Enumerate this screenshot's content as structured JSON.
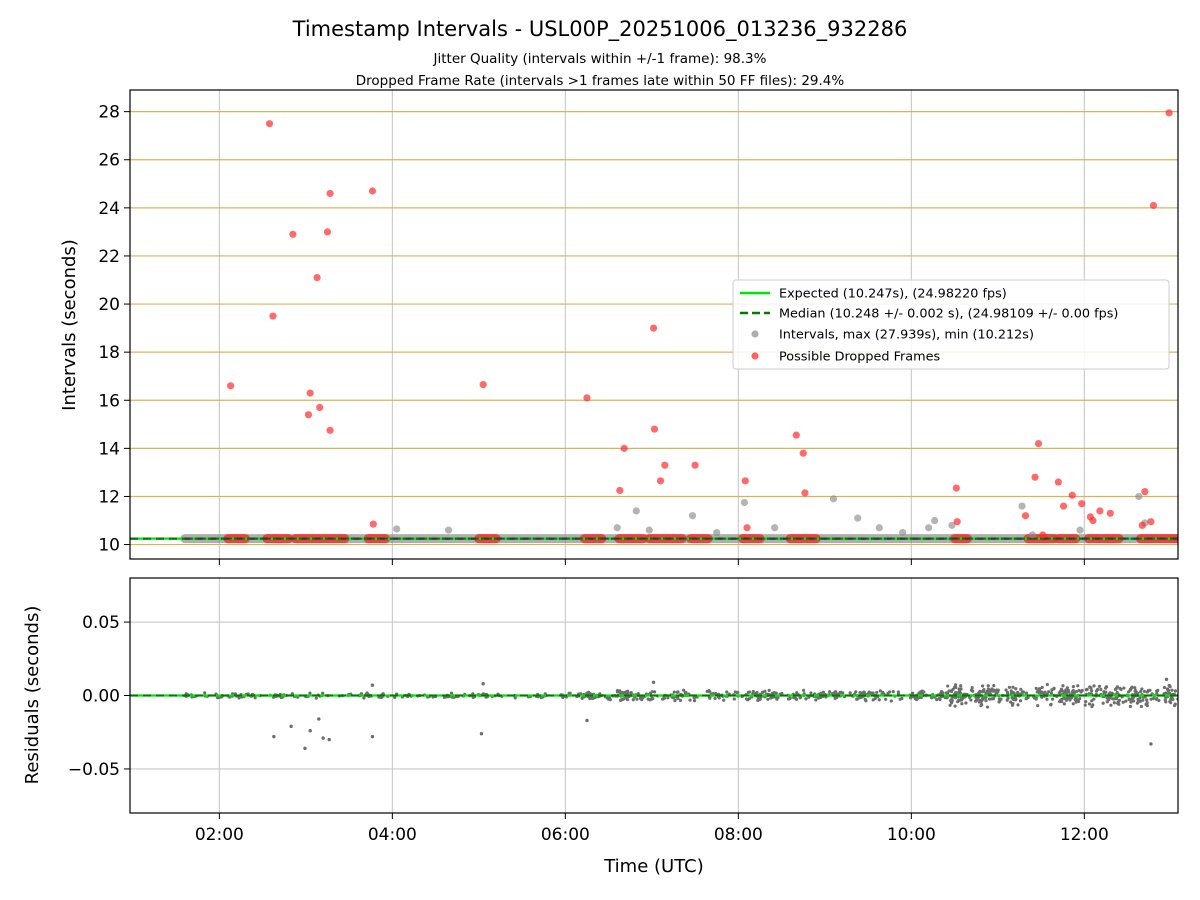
{
  "chart_data": [
    {
      "type": "scatter",
      "title": "Timestamp Intervals - USL00P_20251006_013236_932286",
      "subtitle_lines": [
        "Jitter Quality (intervals within +/-1 frame): 98.3%",
        "Dropped Frame Rate (intervals >1 frames late within 50 FF files): 29.4%"
      ],
      "xlabel": "",
      "ylabel": "Intervals (seconds)",
      "xlim": [
        0.967,
        13.083
      ],
      "ylim": [
        9.4,
        28.9
      ],
      "yticks": [
        10,
        12,
        14,
        16,
        18,
        20,
        22,
        24,
        26,
        28
      ],
      "ytick_labels": [
        "10",
        "12",
        "14",
        "16",
        "18",
        "20",
        "22",
        "24",
        "26",
        "28"
      ],
      "xticks": [
        2,
        4,
        6,
        8,
        10,
        12
      ],
      "grid": true,
      "legend_position": "center-right",
      "legend": [
        "Expected (10.247s), (24.98220 fps)",
        "Median (10.248 +/- 0.002 s), (24.98109 +/- 0.00 fps)",
        "Intervals, max (27.939s), min (10.212s)",
        "Possible Dropped Frames"
      ],
      "expected": 10.247,
      "median": 10.248,
      "colors": {
        "expected": "#00e600",
        "median": "#007a00",
        "intervals": "#8c8c8c",
        "dropped": "#ff2b2b",
        "hgrid": "#d8b35a"
      },
      "series": [
        {
          "name": "Intervals",
          "points": [
            [
              4.05,
              10.65
            ],
            [
              4.65,
              10.6
            ],
            [
              6.6,
              10.7
            ],
            [
              6.82,
              11.4
            ],
            [
              6.97,
              10.6
            ],
            [
              7.47,
              11.2
            ],
            [
              7.75,
              10.5
            ],
            [
              8.07,
              11.75
            ],
            [
              8.42,
              10.7
            ],
            [
              9.1,
              11.9
            ],
            [
              9.38,
              11.1
            ],
            [
              9.63,
              10.7
            ],
            [
              9.9,
              10.5
            ],
            [
              10.2,
              10.7
            ],
            [
              10.27,
              11.0
            ],
            [
              10.47,
              10.8
            ],
            [
              11.28,
              11.6
            ],
            [
              11.4,
              10.4
            ],
            [
              11.95,
              10.6
            ],
            [
              12.63,
              12.0
            ],
            [
              12.7,
              10.9
            ]
          ]
        },
        {
          "name": "Possible Dropped Frames",
          "points": [
            [
              2.13,
              16.6
            ],
            [
              2.58,
              27.5
            ],
            [
              2.62,
              19.5
            ],
            [
              2.85,
              22.9
            ],
            [
              3.03,
              15.4
            ],
            [
              3.05,
              16.3
            ],
            [
              3.13,
              21.1
            ],
            [
              3.16,
              15.7
            ],
            [
              3.25,
              23.0
            ],
            [
              3.28,
              24.6
            ],
            [
              3.28,
              14.75
            ],
            [
              3.77,
              24.7
            ],
            [
              3.78,
              10.85
            ],
            [
              5.05,
              16.65
            ],
            [
              6.25,
              16.1
            ],
            [
              6.63,
              12.25
            ],
            [
              6.68,
              14.0
            ],
            [
              7.02,
              19.0
            ],
            [
              7.03,
              14.8
            ],
            [
              7.1,
              12.65
            ],
            [
              7.15,
              13.3
            ],
            [
              7.5,
              13.3
            ],
            [
              8.08,
              12.65
            ],
            [
              8.1,
              10.7
            ],
            [
              8.67,
              14.55
            ],
            [
              8.75,
              13.8
            ],
            [
              8.77,
              12.15
            ],
            [
              10.52,
              12.35
            ],
            [
              10.53,
              10.95
            ],
            [
              11.32,
              11.2
            ],
            [
              11.43,
              12.8
            ],
            [
              11.47,
              14.2
            ],
            [
              11.52,
              10.4
            ],
            [
              11.7,
              12.6
            ],
            [
              11.76,
              11.6
            ],
            [
              11.86,
              12.05
            ],
            [
              11.97,
              11.7
            ],
            [
              12.07,
              11.15
            ],
            [
              12.1,
              11.0
            ],
            [
              12.18,
              11.4
            ],
            [
              12.3,
              11.3
            ],
            [
              12.67,
              10.8
            ],
            [
              12.7,
              12.2
            ],
            [
              12.77,
              10.95
            ],
            [
              12.8,
              24.1
            ],
            [
              12.98,
              27.95
            ]
          ]
        }
      ],
      "baseline_clusters": [
        [
          2.1,
          2.3
        ],
        [
          2.55,
          2.8
        ],
        [
          2.88,
          3.45
        ],
        [
          3.72,
          3.92
        ],
        [
          5.0,
          5.2
        ],
        [
          6.22,
          6.42
        ],
        [
          6.62,
          6.9
        ],
        [
          6.97,
          7.35
        ],
        [
          7.45,
          7.65
        ],
        [
          8.05,
          8.25
        ],
        [
          8.6,
          8.9
        ],
        [
          10.5,
          10.65
        ],
        [
          11.35,
          11.65
        ],
        [
          11.7,
          11.9
        ],
        [
          12.05,
          12.4
        ],
        [
          12.65,
          13.08
        ]
      ]
    },
    {
      "type": "scatter",
      "title": "",
      "xlabel": "Time (UTC)",
      "ylabel": "Residuals (seconds)",
      "xlim": [
        0.967,
        13.083
      ],
      "ylim": [
        -0.08,
        0.08
      ],
      "yticks": [
        -0.05,
        0.0,
        0.05
      ],
      "ytick_labels": [
        "−0.05",
        "0.00",
        "0.05"
      ],
      "xticks": [
        2,
        4,
        6,
        8,
        10,
        12
      ],
      "xtick_labels": [
        "02:00",
        "04:00",
        "06:00",
        "08:00",
        "10:00",
        "12:00"
      ],
      "grid": true,
      "outliers": [
        [
          2.63,
          -0.028
        ],
        [
          2.83,
          -0.021
        ],
        [
          2.99,
          -0.036
        ],
        [
          3.05,
          -0.024
        ],
        [
          3.15,
          -0.016
        ],
        [
          3.2,
          -0.029
        ],
        [
          3.27,
          -0.03
        ],
        [
          3.77,
          -0.028
        ],
        [
          5.03,
          -0.026
        ],
        [
          6.25,
          -0.017
        ],
        [
          12.77,
          -0.033
        ],
        [
          3.77,
          0.007
        ],
        [
          5.05,
          0.008
        ],
        [
          7.02,
          0.009
        ],
        [
          12.95,
          0.011
        ]
      ],
      "density_ranges": [
        [
          1.6,
          6.2,
          0.25,
          0.002
        ],
        [
          6.2,
          10.4,
          0.55,
          0.004
        ],
        [
          10.4,
          13.083,
          1.0,
          0.008
        ]
      ]
    }
  ]
}
